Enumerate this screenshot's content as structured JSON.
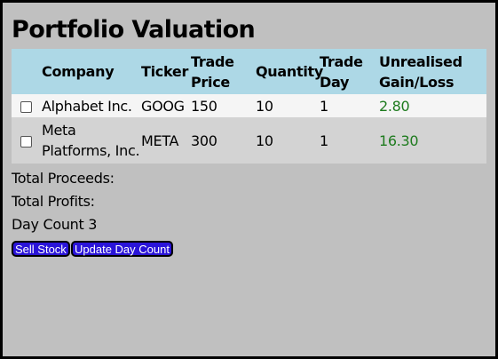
{
  "page": {
    "title": "Portfolio Valuation"
  },
  "table": {
    "headers": {
      "company": "Company",
      "ticker": "Ticker",
      "trade_price": "Trade Price",
      "quantity": "Quantity",
      "trade_day": "Trade Day",
      "unrealised": "Unrealised Gain/Loss"
    },
    "rows": [
      {
        "company": "Alphabet Inc.",
        "ticker": "GOOG",
        "trade_price": "150",
        "quantity": "10",
        "trade_day": "1",
        "unrealised": "2.80",
        "checked": false
      },
      {
        "company": "Meta Platforms, Inc.",
        "ticker": "META",
        "trade_price": "300",
        "quantity": "10",
        "trade_day": "1",
        "unrealised": "16.30",
        "checked": false
      }
    ]
  },
  "summary": {
    "total_proceeds": "Total Proceeds:",
    "total_profits": "Total Profits:",
    "day_count": "Day Count 3"
  },
  "buttons": {
    "sell": "Sell Stock",
    "update_day": "Update Day Count"
  },
  "colors": {
    "background": "#c0c0c0",
    "header_row": "#add8e6",
    "row_odd": "#f5f5f5",
    "row_even": "#d3d3d3",
    "gain_text": "#1e7b1e",
    "button": "#2a14d8"
  }
}
